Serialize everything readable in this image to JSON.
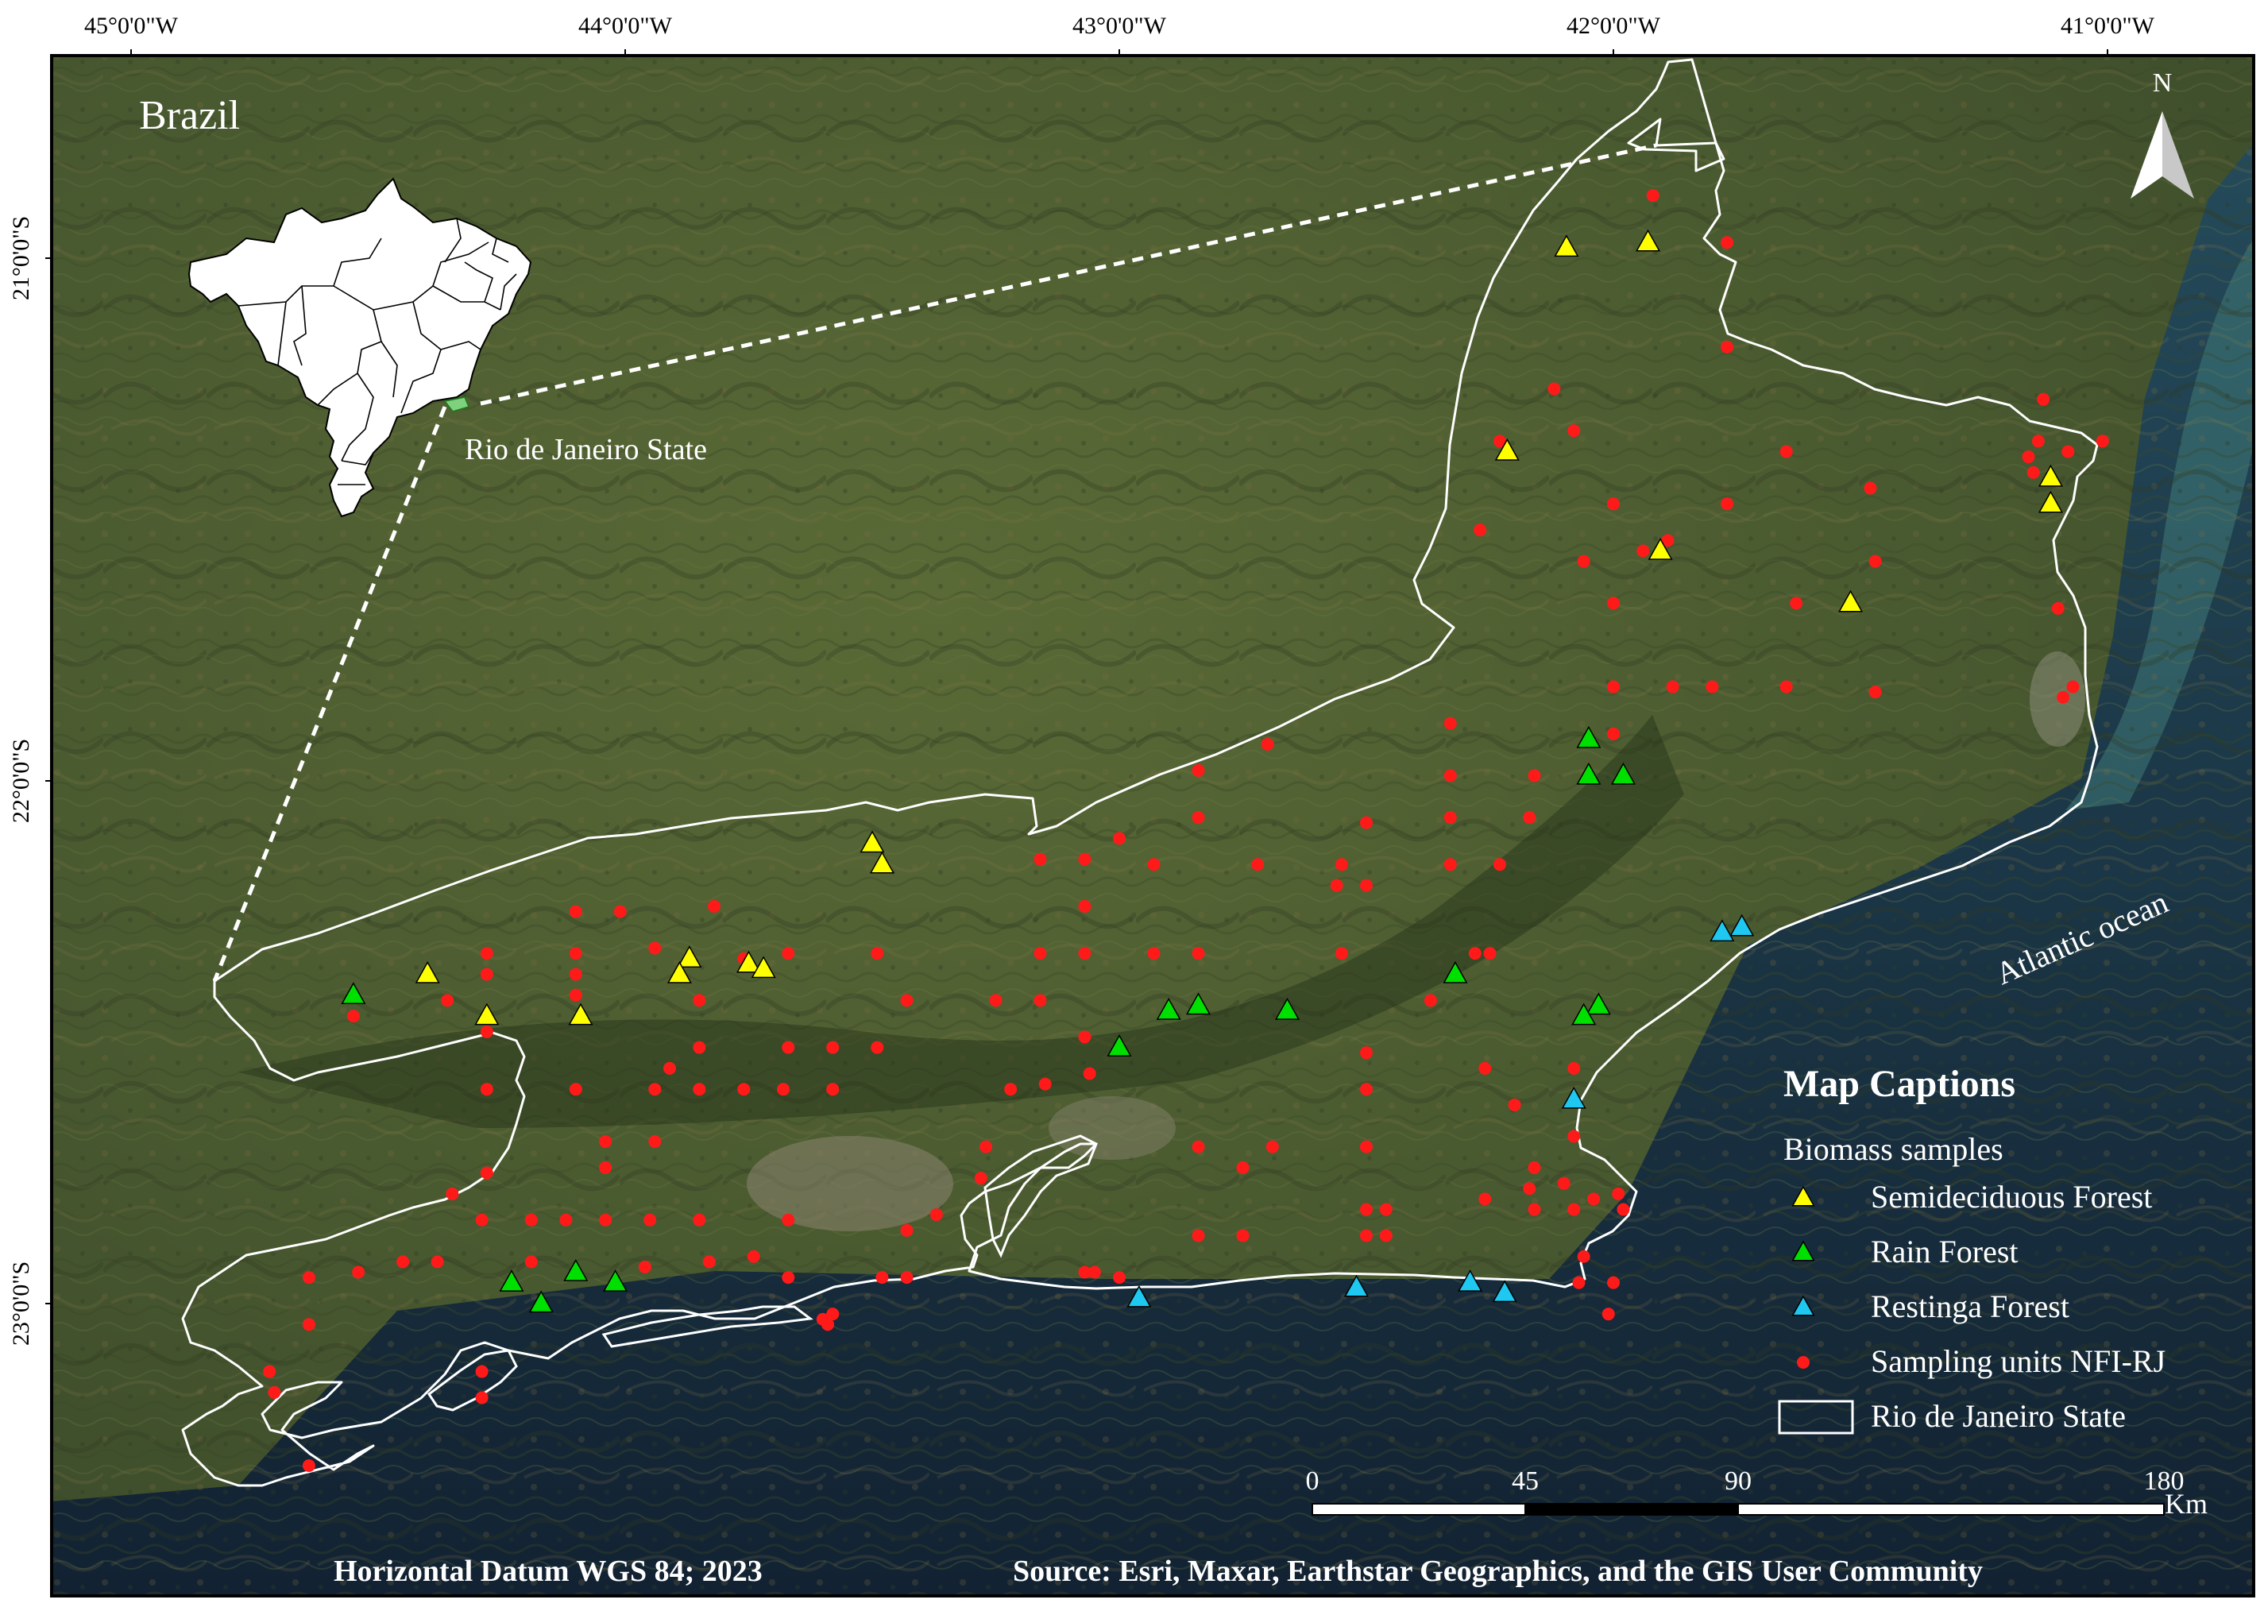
{
  "graticule": {
    "longitude_labels": [
      "45°0'0\"W",
      "44°0'0\"W",
      "43°0'0\"W",
      "42°0'0\"W",
      "41°0'0\"W"
    ],
    "latitude_labels": [
      "21°0'0\"S",
      "22°0'0\"S",
      "23°0'0\"S"
    ]
  },
  "inset": {
    "title": "Brazil",
    "highlight_label": "Rio de Janeiro State"
  },
  "north_arrow": {
    "label": "N"
  },
  "ocean_label": "Atlantic ocean",
  "legend": {
    "title": "Map Captions",
    "subtitle": "Biomass samples",
    "items": [
      {
        "label": "Semideciduous Forest",
        "symbol": "triangle",
        "color": "#ffff00"
      },
      {
        "label": "Rain Forest",
        "symbol": "triangle",
        "color": "#00e000"
      },
      {
        "label": "Restinga Forest",
        "symbol": "triangle",
        "color": "#1ec8f0"
      },
      {
        "label": "Sampling units NFI-RJ",
        "symbol": "circle",
        "color": "#ff1a1a"
      },
      {
        "label": "Rio de Janeiro State",
        "symbol": "outline-box",
        "color": "#ffffff"
      }
    ]
  },
  "scale_bar": {
    "ticks": [
      "0",
      "45",
      "90",
      "180"
    ],
    "unit": "Km"
  },
  "footer": {
    "datum": "Horizontal Datum WGS 84; 2023",
    "source": "Source: Esri, Maxar, Earthstar Geographics, and the GIS User Community"
  },
  "samples": {
    "semideciduous": [
      [
        -42.095,
        -20.98
      ],
      [
        -41.93,
        -20.97
      ],
      [
        -42.215,
        -21.37
      ],
      [
        -41.905,
        -21.56
      ],
      [
        -41.52,
        -21.66
      ],
      [
        -41.115,
        -21.42
      ],
      [
        -41.115,
        -21.47
      ],
      [
        -43.5,
        -22.12
      ],
      [
        -43.48,
        -22.16
      ],
      [
        -44.4,
        -22.37
      ],
      [
        -44.28,
        -22.45
      ],
      [
        -43.87,
        -22.34
      ],
      [
        -43.89,
        -22.37
      ],
      [
        -43.75,
        -22.35
      ],
      [
        -43.72,
        -22.36
      ],
      [
        -44.09,
        -22.45
      ]
    ],
    "rain": [
      [
        -44.55,
        -22.41
      ],
      [
        -42.9,
        -22.44
      ],
      [
        -42.84,
        -22.43
      ],
      [
        -42.66,
        -22.44
      ],
      [
        -42.32,
        -22.37
      ],
      [
        -42.03,
        -22.43
      ],
      [
        -42.06,
        -22.45
      ],
      [
        -43.0,
        -22.51
      ],
      [
        -42.05,
        -21.92
      ],
      [
        -41.98,
        -21.99
      ],
      [
        -42.05,
        -21.99
      ],
      [
        -44.23,
        -22.96
      ],
      [
        -44.17,
        -23.0
      ],
      [
        -44.1,
        -22.94
      ],
      [
        -44.02,
        -22.96
      ]
    ],
    "restinga": [
      [
        -41.78,
        -22.29
      ],
      [
        -41.74,
        -22.28
      ],
      [
        -42.08,
        -22.61
      ],
      [
        -42.96,
        -22.99
      ],
      [
        -42.52,
        -22.97
      ],
      [
        -42.29,
        -22.96
      ],
      [
        -42.22,
        -22.98
      ]
    ],
    "nfi": [
      [
        -41.92,
        -20.88
      ],
      [
        -41.77,
        -20.97
      ],
      [
        -41.77,
        -21.17
      ],
      [
        -42.12,
        -21.25
      ],
      [
        -42.23,
        -21.35
      ],
      [
        -42.08,
        -21.33
      ],
      [
        -41.65,
        -21.37
      ],
      [
        -41.13,
        -21.27
      ],
      [
        -41.14,
        -21.35
      ],
      [
        -41.15,
        -21.41
      ],
      [
        -41.08,
        -21.37
      ],
      [
        -41.01,
        -21.35
      ],
      [
        -41.16,
        -21.38
      ],
      [
        -41.48,
        -21.44
      ],
      [
        -41.77,
        -21.47
      ],
      [
        -42.0,
        -21.47
      ],
      [
        -42.27,
        -21.52
      ],
      [
        -41.89,
        -21.54
      ],
      [
        -42.06,
        -21.58
      ],
      [
        -41.94,
        -21.56
      ],
      [
        -42.0,
        -21.66
      ],
      [
        -41.63,
        -21.66
      ],
      [
        -41.47,
        -21.58
      ],
      [
        -41.1,
        -21.67
      ],
      [
        -41.07,
        -21.82
      ],
      [
        -41.09,
        -21.84
      ],
      [
        -41.47,
        -21.83
      ],
      [
        -41.65,
        -21.82
      ],
      [
        -41.8,
        -21.82
      ],
      [
        -41.88,
        -21.82
      ],
      [
        -42.0,
        -21.82
      ],
      [
        -42.0,
        -21.91
      ],
      [
        -42.33,
        -21.89
      ],
      [
        -42.33,
        -21.99
      ],
      [
        -42.16,
        -21.99
      ],
      [
        -42.17,
        -22.07
      ],
      [
        -42.33,
        -22.07
      ],
      [
        -42.33,
        -22.16
      ],
      [
        -42.5,
        -22.08
      ],
      [
        -42.5,
        -22.2
      ],
      [
        -42.55,
        -22.16
      ],
      [
        -42.56,
        -22.2
      ],
      [
        -42.72,
        -22.16
      ],
      [
        -42.84,
        -22.07
      ],
      [
        -42.84,
        -21.98
      ],
      [
        -42.7,
        -21.93
      ],
      [
        -43.0,
        -22.11
      ],
      [
        -43.07,
        -22.15
      ],
      [
        -43.07,
        -22.24
      ],
      [
        -42.93,
        -22.16
      ],
      [
        -43.16,
        -22.15
      ],
      [
        -43.16,
        -22.33
      ],
      [
        -43.07,
        -22.33
      ],
      [
        -42.93,
        -22.33
      ],
      [
        -42.84,
        -22.33
      ],
      [
        -42.55,
        -22.33
      ],
      [
        -42.37,
        -22.42
      ],
      [
        -42.28,
        -22.33
      ],
      [
        -42.25,
        -22.33
      ],
      [
        -42.5,
        -22.52
      ],
      [
        -43.0,
        -22.51
      ],
      [
        -43.15,
        -22.58
      ],
      [
        -43.16,
        -22.42
      ],
      [
        -43.25,
        -22.42
      ],
      [
        -43.43,
        -22.42
      ],
      [
        -43.49,
        -22.51
      ],
      [
        -43.58,
        -22.51
      ],
      [
        -43.67,
        -22.51
      ],
      [
        -43.85,
        -22.51
      ],
      [
        -43.58,
        -22.59
      ],
      [
        -43.68,
        -22.59
      ],
      [
        -43.76,
        -22.59
      ],
      [
        -43.85,
        -22.59
      ],
      [
        -43.91,
        -22.55
      ],
      [
        -43.94,
        -22.59
      ],
      [
        -43.94,
        -22.69
      ],
      [
        -44.04,
        -22.69
      ],
      [
        -44.04,
        -22.74
      ],
      [
        -44.1,
        -22.59
      ],
      [
        -44.28,
        -22.59
      ],
      [
        -44.28,
        -22.48
      ],
      [
        -44.28,
        -22.33
      ],
      [
        -44.1,
        -22.33
      ],
      [
        -44.1,
        -22.41
      ],
      [
        -44.1,
        -22.25
      ],
      [
        -44.01,
        -22.25
      ],
      [
        -44.1,
        -22.37
      ],
      [
        -44.55,
        -22.45
      ],
      [
        -44.36,
        -22.42
      ],
      [
        -43.76,
        -22.34
      ],
      [
        -43.67,
        -22.33
      ],
      [
        -43.85,
        -22.42
      ],
      [
        -43.49,
        -22.33
      ],
      [
        -43.22,
        -22.59
      ],
      [
        -43.07,
        -22.49
      ],
      [
        -43.06,
        -22.56
      ],
      [
        -42.5,
        -22.59
      ],
      [
        -42.26,
        -22.55
      ],
      [
        -42.2,
        -22.62
      ],
      [
        -42.08,
        -22.55
      ],
      [
        -42.08,
        -22.68
      ],
      [
        -42.16,
        -22.74
      ],
      [
        -42.16,
        -22.82
      ],
      [
        -42.5,
        -22.82
      ],
      [
        -42.5,
        -22.7
      ],
      [
        -42.69,
        -22.7
      ],
      [
        -42.75,
        -22.74
      ],
      [
        -42.84,
        -22.7
      ],
      [
        -42.84,
        -22.87
      ],
      [
        -42.75,
        -22.87
      ],
      [
        -42.5,
        -22.87
      ],
      [
        -42.46,
        -22.87
      ],
      [
        -42.46,
        -22.82
      ],
      [
        -42.26,
        -22.8
      ],
      [
        -42.17,
        -22.78
      ],
      [
        -42.08,
        -22.82
      ],
      [
        -42.1,
        -22.77
      ],
      [
        -42.04,
        -22.8
      ],
      [
        -41.99,
        -22.79
      ],
      [
        -41.98,
        -22.82
      ],
      [
        -42.06,
        -22.91
      ],
      [
        -42.07,
        -22.96
      ],
      [
        -42.0,
        -22.96
      ],
      [
        -42.01,
        -23.02
      ],
      [
        -43.0,
        -22.95
      ],
      [
        -43.05,
        -22.94
      ],
      [
        -43.07,
        -22.94
      ],
      [
        -43.27,
        -22.7
      ],
      [
        -43.28,
        -22.76
      ],
      [
        -43.37,
        -22.83
      ],
      [
        -43.43,
        -22.86
      ],
      [
        -43.43,
        -22.95
      ],
      [
        -43.48,
        -22.95
      ],
      [
        -43.58,
        -23.02
      ],
      [
        -43.59,
        -23.04
      ],
      [
        -43.6,
        -23.03
      ],
      [
        -43.67,
        -22.84
      ],
      [
        -43.67,
        -22.95
      ],
      [
        -43.85,
        -22.84
      ],
      [
        -43.95,
        -22.84
      ],
      [
        -43.96,
        -22.93
      ],
      [
        -44.04,
        -22.84
      ],
      [
        -44.12,
        -22.84
      ],
      [
        -44.19,
        -22.84
      ],
      [
        -44.29,
        -22.84
      ],
      [
        -44.19,
        -22.92
      ],
      [
        -44.38,
        -22.92
      ],
      [
        -44.45,
        -22.92
      ],
      [
        -44.54,
        -22.94
      ],
      [
        -44.64,
        -22.95
      ],
      [
        -44.64,
        -23.04
      ],
      [
        -44.72,
        -23.13
      ],
      [
        -44.71,
        -23.17
      ],
      [
        -44.64,
        -23.31
      ],
      [
        -44.29,
        -23.13
      ],
      [
        -44.29,
        -23.18
      ],
      [
        -44.35,
        -22.79
      ],
      [
        -44.28,
        -22.75
      ],
      [
        -43.83,
        -22.92
      ],
      [
        -43.74,
        -22.91
      ],
      [
        -43.82,
        -22.24
      ],
      [
        -43.94,
        -22.32
      ],
      [
        -44.28,
        -22.37
      ],
      [
        -42.23,
        -22.16
      ]
    ]
  }
}
